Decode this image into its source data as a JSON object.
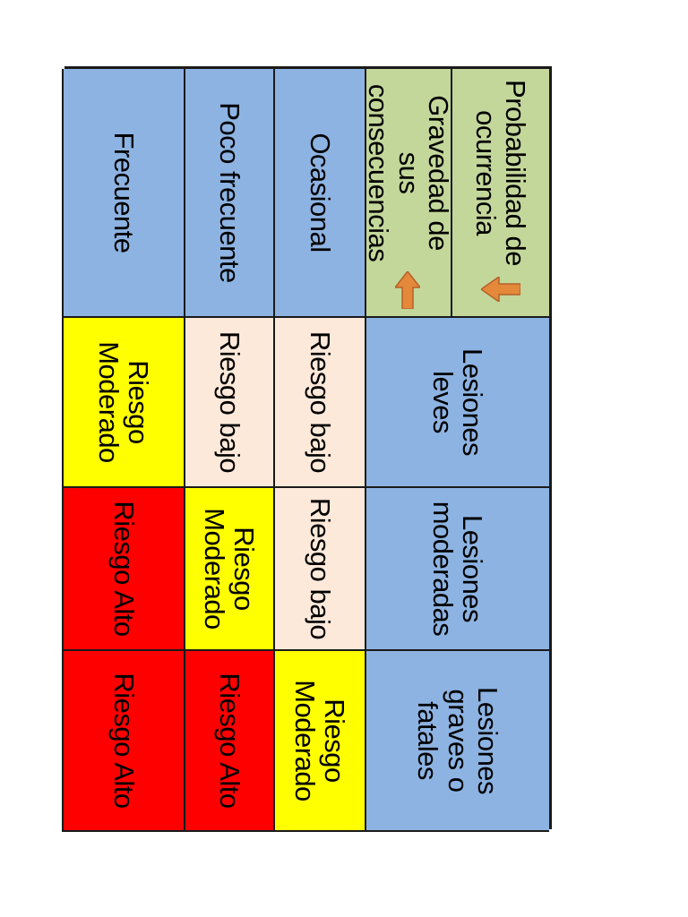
{
  "header": {
    "probability_label": "Probabilidad de ocurrencia",
    "severity_label": "Gravedad de sus consecuencias"
  },
  "columns": [
    "Lesiones leves",
    "Lesiones moderadas",
    "Lesiones graves o fatales"
  ],
  "rows": [
    {
      "label": "Ocasional",
      "cells": [
        "Riesgo bajo",
        "Riesgo bajo",
        "Riesgo Moderado"
      ]
    },
    {
      "label": "Poco frecuente",
      "cells": [
        "Riesgo bajo",
        "Riesgo Moderado",
        "Riesgo Alto"
      ]
    },
    {
      "label": "Frecuente",
      "cells": [
        "Riesgo Moderado",
        "Riesgo Alto",
        "Riesgo Alto"
      ]
    }
  ],
  "colors": {
    "header_blue": "#8db3e2",
    "header_green": "#c4d79b",
    "low": "#fde9d9",
    "moderate": "#ffff00",
    "high": "#ff0000",
    "arrow": "#e4883a"
  }
}
